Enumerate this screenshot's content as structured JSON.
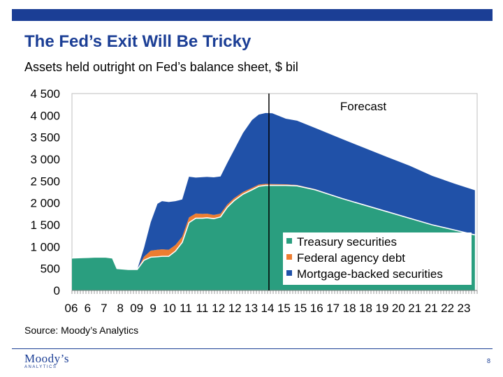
{
  "header": {
    "title": "The Fed’s Exit Will Be Tricky",
    "subtitle": "Assets held outright on Fed’s balance sheet, $ bil"
  },
  "footer": {
    "source": "Source: Moody’s Analytics",
    "logo_main": "Moody’s",
    "logo_sub": "ANALYTICS",
    "page_number": "8"
  },
  "colors": {
    "brand": "#1b3e95",
    "treasury": "#2a9e7f",
    "agency": "#ed7d31",
    "mbs": "#2051a8"
  },
  "chart_data": {
    "type": "area",
    "stacked": true,
    "title": "Assets held outright on Fed’s balance sheet, $ bil",
    "xlabel": "",
    "ylabel": "",
    "xlim": [
      2006.0,
      2024.0
    ],
    "ylim": [
      0,
      4500
    ],
    "yticks": [
      0,
      500,
      1000,
      1500,
      2000,
      2500,
      3000,
      3500,
      4000,
      4500
    ],
    "ytick_labels": [
      "0",
      "500",
      "1 000",
      "1 500",
      "2 000",
      "2 500",
      "3 000",
      "3 500",
      "4 000",
      "4 500"
    ],
    "xtick_labels": [
      "06",
      "6",
      "7",
      "8",
      "09",
      "9",
      "10",
      "11",
      "11",
      "12",
      "12",
      "13",
      "14",
      "15",
      "15",
      "16",
      "17",
      "18",
      "18",
      "19",
      "20",
      "21",
      "21",
      "22",
      "23"
    ],
    "annotation": {
      "text": "Forecast",
      "x": 2014.75
    },
    "legend_position": "lower-right",
    "x": [
      2006.0,
      2006.5,
      2007.0,
      2007.5,
      2007.8,
      2008.0,
      2008.5,
      2008.9,
      2009.2,
      2009.5,
      2009.8,
      2010.0,
      2010.3,
      2010.6,
      2010.9,
      2011.2,
      2011.5,
      2011.8,
      2012.0,
      2012.3,
      2012.6,
      2012.9,
      2013.2,
      2013.6,
      2014.0,
      2014.3,
      2014.6,
      2014.9,
      2015.5,
      2016.0,
      2016.8,
      2018.0,
      2019.0,
      2020.0,
      2021.0,
      2022.0,
      2023.0,
      2023.9
    ],
    "series": [
      {
        "name": "Treasury securities",
        "color": "#2a9e7f",
        "values": [
          740,
          750,
          760,
          760,
          740,
          500,
          480,
          480,
          690,
          760,
          770,
          780,
          780,
          900,
          1100,
          1550,
          1650,
          1650,
          1660,
          1640,
          1680,
          1900,
          2050,
          2200,
          2300,
          2380,
          2400,
          2400,
          2400,
          2390,
          2300,
          2100,
          1950,
          1800,
          1650,
          1500,
          1380,
          1270
        ]
      },
      {
        "name": "Federal agency debt",
        "color": "#ed7d31",
        "values": [
          0,
          0,
          0,
          0,
          0,
          0,
          0,
          0,
          80,
          150,
          160,
          160,
          150,
          140,
          130,
          120,
          110,
          100,
          95,
          85,
          75,
          65,
          58,
          50,
          45,
          40,
          35,
          30,
          25,
          20,
          15,
          10,
          5,
          0,
          0,
          0,
          0,
          0
        ]
      },
      {
        "name": "Mortgage-backed securities",
        "color": "#2051a8",
        "values": [
          0,
          0,
          0,
          0,
          0,
          0,
          0,
          0,
          200,
          650,
          1050,
          1100,
          1090,
          1000,
          850,
          930,
          820,
          840,
          840,
          860,
          850,
          950,
          1100,
          1350,
          1550,
          1600,
          1620,
          1620,
          1500,
          1470,
          1400,
          1350,
          1300,
          1250,
          1200,
          1120,
          1060,
          1020
        ]
      }
    ]
  }
}
